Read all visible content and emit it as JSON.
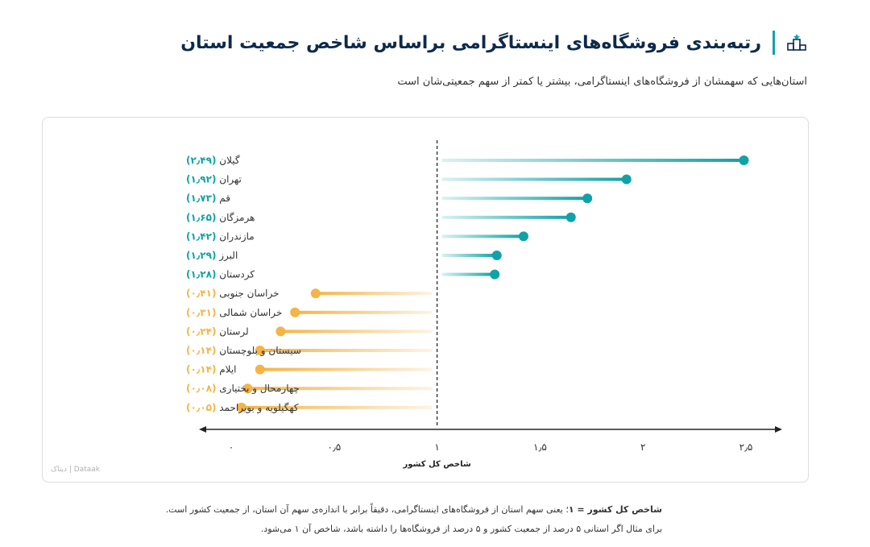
{
  "title": "رتبه‌بندی فروشگاه‌های اینستاگرامی براساس شاخص جمعیت استان",
  "subtitle": "استان‌هایی که سهمشان از فروشگاه‌های اینستاگرامی، بیشتر یا کمتر از سهم جمعیتی‌شان است",
  "watermark": "دیتاک | Dataak",
  "footnote": {
    "bold": "شاخص کل کشور = ۱",
    "line1": "؛ یعنی سهم استان از فروشگاه‌های اینستاگرامی، دقیقاً برابر با اندازه‌ی سهم آن استان، از جمعیت کشور است.",
    "line2": "برای مثال اگر استانی ۵ درصد از جمعیت کشور و ۵ درصد از فروشگاه‌ها را داشته باشد، شاخص آن ۱ می‌شود."
  },
  "colors": {
    "above": "#10a2a6",
    "below": "#f5b445",
    "header_accent": "#12a3a6",
    "title": "#0d2a4a"
  },
  "chart_data": {
    "type": "lollipop",
    "xlabel": "شاخص کل کشور",
    "xlim": [
      0,
      2.5
    ],
    "reference_line": 1,
    "xticks": [
      {
        "value": 0,
        "label": "۰"
      },
      {
        "value": 0.5,
        "label": "۰٫۵"
      },
      {
        "value": 1,
        "label": "۱"
      },
      {
        "value": 1.5,
        "label": "۱٫۵"
      },
      {
        "value": 2,
        "label": "۲"
      },
      {
        "value": 2.5,
        "label": "۲٫۵"
      }
    ],
    "rows": [
      {
        "name": "گیلان",
        "value": 2.49,
        "label": "(۲٫۴۹)"
      },
      {
        "name": "تهران",
        "value": 1.92,
        "label": "(۱٫۹۲)"
      },
      {
        "name": "قم",
        "value": 1.73,
        "label": "(۱٫۷۳)"
      },
      {
        "name": "هرمزگان",
        "value": 1.65,
        "label": "(۱٫۶۵)"
      },
      {
        "name": "مازندران",
        "value": 1.42,
        "label": "(۱٫۴۲)"
      },
      {
        "name": "البرز",
        "value": 1.29,
        "label": "(۱٫۲۹)"
      },
      {
        "name": "کردستان",
        "value": 1.28,
        "label": "(۱٫۲۸)"
      },
      {
        "name": "خراسان جنوبی",
        "value": 0.41,
        "label": "(۰٫۴۱)"
      },
      {
        "name": "خراسان شمالی",
        "value": 0.31,
        "label": "(۰٫۳۱)"
      },
      {
        "name": "لرستان",
        "value": 0.24,
        "label": "(۰٫۲۴)"
      },
      {
        "name": "سیستان و بلوچستان",
        "value": 0.14,
        "label": "(۰٫۱۴)"
      },
      {
        "name": "ایلام",
        "value": 0.14,
        "label": "(۰٫۱۴)"
      },
      {
        "name": "چهارمحال و بختیاری",
        "value": 0.08,
        "label": "(۰٫۰۸)"
      },
      {
        "name": "کهگیلویه و بویراحمد",
        "value": 0.05,
        "label": "(۰٫۰۵)"
      }
    ]
  }
}
